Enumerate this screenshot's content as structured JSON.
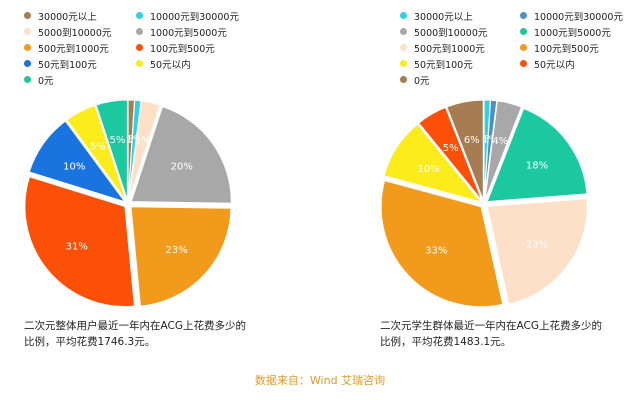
{
  "legends": {
    "left": [
      {
        "label": "30000元以上",
        "color": "#a67c52"
      },
      {
        "label": "10000元到30000元",
        "color": "#2fd0e8"
      },
      {
        "label": "5000到10000元",
        "color": "#fce0c8"
      },
      {
        "label": "1000元到5000元",
        "color": "#a8a8a8"
      },
      {
        "label": "500元到1000元",
        "color": "#f29a1c"
      },
      {
        "label": "100元到500元",
        "color": "#fc5008"
      },
      {
        "label": "50元到100元",
        "color": "#1a74e0"
      },
      {
        "label": "50元以内",
        "color": "#fcec1c"
      },
      {
        "label": "0元",
        "color": "#1cc8a0"
      }
    ],
    "right": [
      {
        "label": "30000元以上",
        "color": "#2fd0e8"
      },
      {
        "label": "10000元到30000元",
        "color": "#4a90c8"
      },
      {
        "label": "5000到10000元",
        "color": "#a8a8a8"
      },
      {
        "label": "1000元到5000元",
        "color": "#1cc8a0"
      },
      {
        "label": "500元到1000元",
        "color": "#fce0c8"
      },
      {
        "label": "100元到500元",
        "color": "#f29a1c"
      },
      {
        "label": "50元到100元",
        "color": "#fcec1c"
      },
      {
        "label": "50元以内",
        "color": "#fc5008"
      },
      {
        "label": "0元",
        "color": "#a67c52"
      }
    ]
  },
  "captions": {
    "left": "二次元整体用户最近一年内在ACG上花费多少的比例，平均花费1746.3元。",
    "right": "二次元学生群体最近一年内在ACG上花费多少的比例，平均花费1483.1元。"
  },
  "source": "数据来自：Wind 艾瑞咨询",
  "chart_data": [
    {
      "type": "pie",
      "title": "",
      "slices": [
        {
          "label": "30000元以上",
          "value": 1,
          "display": "1%",
          "color": "#a67c52"
        },
        {
          "label": "10000元到30000元",
          "value": 1,
          "display": "1%",
          "color": "#2fd0e8"
        },
        {
          "label": "5000到10000元",
          "value": 3,
          "display": "3%",
          "color": "#fce0c8"
        },
        {
          "label": "1000元到5000元",
          "value": 20,
          "display": "20%",
          "color": "#a8a8a8"
        },
        {
          "label": "500元到1000元",
          "value": 23,
          "display": "23%",
          "color": "#f29a1c"
        },
        {
          "label": "100元到500元",
          "value": 31,
          "display": "31%",
          "color": "#fc5008"
        },
        {
          "label": "50元到100元",
          "value": 10,
          "display": "10%",
          "color": "#1a74e0"
        },
        {
          "label": "50元以内",
          "value": 5,
          "display": "5%",
          "color": "#fcec1c"
        },
        {
          "label": "0元",
          "value": 5,
          "display": "5%",
          "color": "#1cc8a0"
        }
      ]
    },
    {
      "type": "pie",
      "title": "",
      "slices": [
        {
          "label": "30000元以上",
          "value": 1,
          "display": "1%",
          "color": "#2fd0e8"
        },
        {
          "label": "10000元到30000元",
          "value": 1,
          "display": "1%",
          "color": "#4a90c8"
        },
        {
          "label": "5000到10000元",
          "value": 4,
          "display": "4%",
          "color": "#a8a8a8"
        },
        {
          "label": "1000元到5000元",
          "value": 18,
          "display": "18%",
          "color": "#1cc8a0"
        },
        {
          "label": "500元到1000元",
          "value": 23,
          "display": "23%",
          "color": "#fce0c8"
        },
        {
          "label": "100元到500元",
          "value": 33,
          "display": "33%",
          "color": "#f29a1c"
        },
        {
          "label": "50元到100元",
          "value": 10,
          "display": "10%",
          "color": "#fcec1c"
        },
        {
          "label": "50元以内",
          "value": 5,
          "display": "5%",
          "color": "#fc5008"
        },
        {
          "label": "0元",
          "value": 6,
          "display": "6%",
          "color": "#a67c52"
        }
      ]
    }
  ]
}
